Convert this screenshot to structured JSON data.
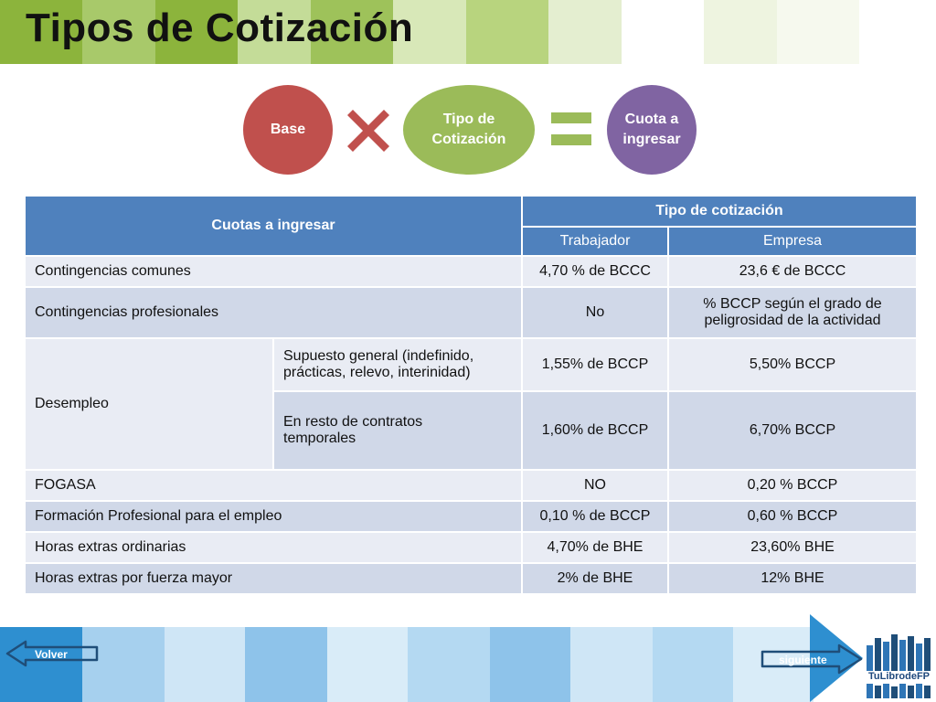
{
  "title": "Tipos de Cotización",
  "formula": {
    "base": "Base",
    "tipo_line1": "Tipo de",
    "tipo_line2": "Cotización",
    "cuota_line1": "Cuota a",
    "cuota_line2": "ingresar",
    "operator_multiply": "times-icon",
    "operator_equals": "equals-icon"
  },
  "table": {
    "header": {
      "cuotas": "Cuotas a ingresar",
      "tipo": "Tipo de cotización",
      "trabajador": "Trabajador",
      "empresa": "Empresa"
    },
    "rows": [
      {
        "concept": "Contingencias comunes",
        "trabajador": "4,70 % de BCCC",
        "empresa": "23,6 € de BCCC"
      },
      {
        "concept": "Contingencias profesionales",
        "trabajador": "No",
        "empresa_line1": "% BCCP según el grado de",
        "empresa_line2": "peligrosidad de la actividad"
      },
      {
        "concept": "Desempleo",
        "sub": [
          {
            "line1": "Supuesto general (indefinido,",
            "line2": "prácticas, relevo, interinidad)",
            "trabajador": "1,55% de BCCP",
            "empresa": "5,50% BCCP"
          },
          {
            "line1": "En resto de contratos",
            "line2": "temporales",
            "trabajador": "1,60% de BCCP",
            "empresa": "6,70% BCCP"
          }
        ]
      },
      {
        "concept": "FOGASA",
        "trabajador": "NO",
        "empresa": "0,20 % BCCP"
      },
      {
        "concept": "Formación Profesional para el empleo",
        "trabajador": "0,10 % de BCCP",
        "empresa": "0,60 % BCCP"
      },
      {
        "concept": "Horas extras ordinarias",
        "trabajador": "4,70% de BHE",
        "empresa": "23,60% BHE"
      },
      {
        "concept": "Horas extras por fuerza mayor",
        "trabajador": "2% de BHE",
        "empresa": "12% BHE"
      }
    ]
  },
  "nav": {
    "volver": "Volver",
    "siguiente": "siguiente",
    "logo_text": "TuLibrodeFP"
  },
  "colors": {
    "header_blue": "#4f81bd",
    "row_light": "#e9ecf4",
    "row_dark": "#d0d8e8",
    "red_circle": "#c0504d",
    "green_circle": "#9bbb59",
    "purple_circle": "#8064a2"
  }
}
